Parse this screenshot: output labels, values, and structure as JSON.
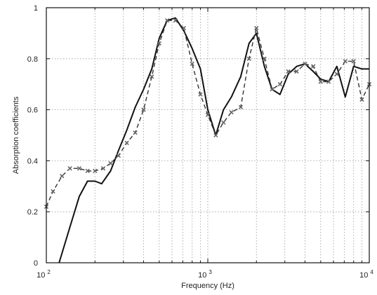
{
  "chart_data": {
    "type": "line",
    "xlabel": "Frequency (Hz)",
    "ylabel": "Absorption coefficients",
    "x_scale": "log",
    "xlim": [
      100,
      10000
    ],
    "ylim": [
      0,
      1
    ],
    "x_ticks": [
      {
        "value": 100,
        "base": "10",
        "exp": "2"
      },
      {
        "value": 1000,
        "base": "10",
        "exp": "3"
      },
      {
        "value": 10000,
        "base": "10",
        "exp": "4"
      }
    ],
    "y_ticks": [
      {
        "value": 0,
        "label": "0"
      },
      {
        "value": 0.2,
        "label": "0.2"
      },
      {
        "value": 0.4,
        "label": "0.4"
      },
      {
        "value": 0.6,
        "label": "0.6"
      },
      {
        "value": 0.8,
        "label": "0.8"
      },
      {
        "value": 1,
        "label": "1"
      }
    ],
    "grid": true,
    "series": [
      {
        "style": "solid",
        "color": "#111111",
        "x": [
          120,
          140,
          160,
          180,
          200,
          220,
          250,
          280,
          315,
          355,
          400,
          450,
          500,
          560,
          630,
          710,
          800,
          900,
          1000,
          1120,
          1250,
          1400,
          1600,
          1800,
          2000,
          2240,
          2500,
          2800,
          3150,
          3550,
          4000,
          4500,
          5000,
          5600,
          6300,
          7100,
          8000,
          9000,
          10000
        ],
        "y": [
          0.0,
          0.14,
          0.26,
          0.32,
          0.32,
          0.31,
          0.36,
          0.44,
          0.52,
          0.61,
          0.68,
          0.76,
          0.88,
          0.95,
          0.96,
          0.91,
          0.84,
          0.76,
          0.6,
          0.5,
          0.6,
          0.65,
          0.73,
          0.86,
          0.9,
          0.77,
          0.68,
          0.66,
          0.74,
          0.77,
          0.78,
          0.75,
          0.72,
          0.71,
          0.77,
          0.65,
          0.77,
          0.76,
          0.76
        ]
      },
      {
        "style": "dashed",
        "color": "#333333",
        "marker": "x",
        "x": [
          100,
          110,
          125,
          140,
          160,
          180,
          200,
          225,
          250,
          280,
          315,
          355,
          400,
          450,
          500,
          560,
          630,
          710,
          800,
          900,
          1000,
          1120,
          1250,
          1400,
          1600,
          1800,
          2000,
          2240,
          2500,
          2800,
          3150,
          3550,
          4000,
          4500,
          5000,
          5600,
          6300,
          7100,
          8000,
          9000,
          10000
        ],
        "y": [
          0.22,
          0.28,
          0.34,
          0.37,
          0.37,
          0.36,
          0.36,
          0.37,
          0.39,
          0.42,
          0.47,
          0.51,
          0.6,
          0.73,
          0.86,
          0.95,
          0.95,
          0.92,
          0.78,
          0.66,
          0.58,
          0.5,
          0.55,
          0.59,
          0.61,
          0.8,
          0.92,
          0.8,
          0.68,
          0.7,
          0.75,
          0.75,
          0.78,
          0.77,
          0.71,
          0.71,
          0.74,
          0.79,
          0.79,
          0.64,
          0.7
        ]
      }
    ]
  }
}
